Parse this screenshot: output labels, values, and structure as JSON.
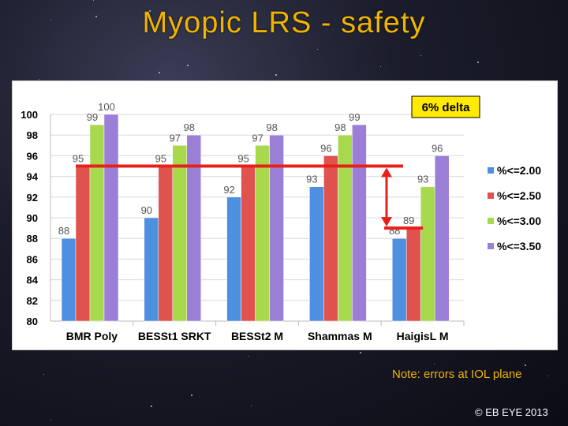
{
  "slide": {
    "title": "Myopic LRS - safety",
    "note": "Note: errors at IOL plane",
    "copyright": "© EB EYE 2013"
  },
  "annotation": {
    "label": "6% delta",
    "color": "#e8201a"
  },
  "chart_data": {
    "type": "bar",
    "categories": [
      "BMR Poly",
      "BESSt1 SRKT",
      "BESSt2 M",
      "Shammas M",
      "HaigisL M"
    ],
    "series": [
      {
        "name": "%<=2.00",
        "values": [
          88,
          90,
          92,
          93,
          88
        ],
        "color": "#4f8fe0"
      },
      {
        "name": "%<=2.50",
        "values": [
          95,
          95,
          95,
          96,
          89
        ],
        "color": "#e0524e"
      },
      {
        "name": "%<=3.00",
        "values": [
          99,
          97,
          97,
          98,
          93
        ],
        "color": "#a8d84c"
      },
      {
        "name": "%<=3.50",
        "values": [
          100,
          98,
          98,
          99,
          96
        ],
        "color": "#9b7ed6"
      }
    ],
    "ylim": [
      80,
      100
    ],
    "yticks": [
      80,
      82,
      84,
      86,
      88,
      90,
      92,
      94,
      96,
      98,
      100
    ],
    "grid": true,
    "legend": "right"
  }
}
